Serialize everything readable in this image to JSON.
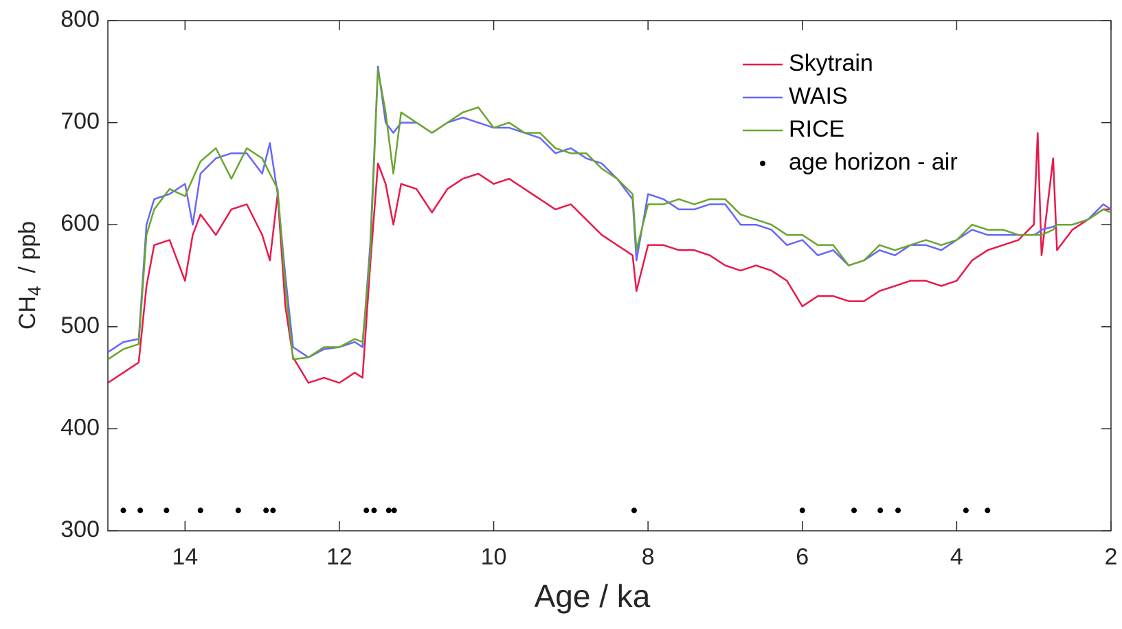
{
  "chart_data": {
    "type": "line",
    "x_label": "Age / ka",
    "y_label": {
      "main": "CH",
      "sub": "4",
      "rest": "  / ppb"
    },
    "xlim": [
      15,
      2
    ],
    "ylim": [
      300,
      800
    ],
    "xticks": [
      14,
      12,
      10,
      8,
      6,
      4,
      2
    ],
    "yticks": [
      300,
      400,
      500,
      600,
      700,
      800
    ],
    "legend": "upper right",
    "x": [
      15.0,
      14.8,
      14.6,
      14.5,
      14.4,
      14.2,
      14.0,
      13.9,
      13.8,
      13.6,
      13.4,
      13.2,
      13.0,
      12.9,
      12.8,
      12.7,
      12.6,
      12.4,
      12.2,
      12.0,
      11.8,
      11.7,
      11.6,
      11.5,
      11.4,
      11.3,
      11.2,
      11.0,
      10.8,
      10.6,
      10.4,
      10.2,
      10.0,
      9.8,
      9.6,
      9.4,
      9.2,
      9.0,
      8.8,
      8.6,
      8.4,
      8.2,
      8.15,
      8.0,
      7.8,
      7.6,
      7.4,
      7.2,
      7.0,
      6.8,
      6.6,
      6.4,
      6.2,
      6.0,
      5.8,
      5.6,
      5.4,
      5.2,
      5.0,
      4.8,
      4.6,
      4.4,
      4.2,
      4.0,
      3.8,
      3.6,
      3.4,
      3.2,
      3.0,
      2.95,
      2.9,
      2.75,
      2.7,
      2.5,
      2.3,
      2.1,
      2.0
    ],
    "series": [
      {
        "name": "Skytrain",
        "color": "#e8194a",
        "values": [
          445,
          455,
          465,
          540,
          580,
          585,
          545,
          590,
          610,
          590,
          615,
          620,
          590,
          565,
          630,
          520,
          470,
          445,
          450,
          445,
          455,
          450,
          560,
          660,
          640,
          600,
          640,
          635,
          612,
          635,
          645,
          650,
          640,
          645,
          635,
          625,
          615,
          620,
          605,
          590,
          580,
          570,
          535,
          580,
          580,
          575,
          575,
          570,
          560,
          555,
          560,
          555,
          545,
          520,
          530,
          530,
          525,
          525,
          535,
          540,
          545,
          545,
          540,
          545,
          565,
          575,
          580,
          585,
          600,
          690,
          570,
          665,
          575,
          595,
          605,
          615,
          615
        ]
      },
      {
        "name": "WAIS",
        "color": "#6666ff",
        "values": [
          475,
          485,
          488,
          600,
          625,
          630,
          640,
          600,
          650,
          665,
          670,
          670,
          650,
          680,
          630,
          550,
          480,
          470,
          478,
          480,
          485,
          480,
          580,
          755,
          700,
          690,
          700,
          700,
          690,
          700,
          705,
          700,
          695,
          695,
          690,
          685,
          670,
          675,
          665,
          660,
          645,
          625,
          565,
          630,
          625,
          615,
          615,
          620,
          620,
          600,
          600,
          595,
          580,
          585,
          570,
          575,
          560,
          565,
          575,
          570,
          580,
          580,
          575,
          585,
          595,
          590,
          590,
          590,
          590,
          592,
          595,
          598,
          600,
          600,
          605,
          620,
          615
        ]
      },
      {
        "name": "RICE",
        "color": "#6aa52e",
        "values": [
          468,
          478,
          483,
          590,
          615,
          635,
          628,
          645,
          662,
          675,
          645,
          675,
          665,
          650,
          635,
          540,
          468,
          470,
          480,
          480,
          488,
          485,
          570,
          752,
          710,
          650,
          710,
          700,
          690,
          700,
          710,
          715,
          695,
          700,
          690,
          690,
          675,
          670,
          670,
          655,
          645,
          630,
          575,
          620,
          620,
          625,
          620,
          625,
          625,
          610,
          605,
          600,
          590,
          590,
          580,
          580,
          560,
          565,
          580,
          575,
          580,
          585,
          580,
          585,
          600,
          595,
          595,
          590,
          590,
          590,
          590,
          595,
          600,
          600,
          605,
          615,
          612
        ]
      },
      {
        "name": "age horizon - air",
        "color": "#000000",
        "type": "scatter",
        "x": [
          14.8,
          14.58,
          14.24,
          13.8,
          13.31,
          12.95,
          12.86,
          11.65,
          11.55,
          11.36,
          11.29,
          8.18,
          6.0,
          5.33,
          4.99,
          4.76,
          3.88,
          3.6
        ],
        "values": [
          320,
          320,
          320,
          320,
          320,
          320,
          320,
          320,
          320,
          320,
          320,
          320,
          320,
          320,
          320,
          320,
          320,
          320
        ]
      }
    ]
  }
}
